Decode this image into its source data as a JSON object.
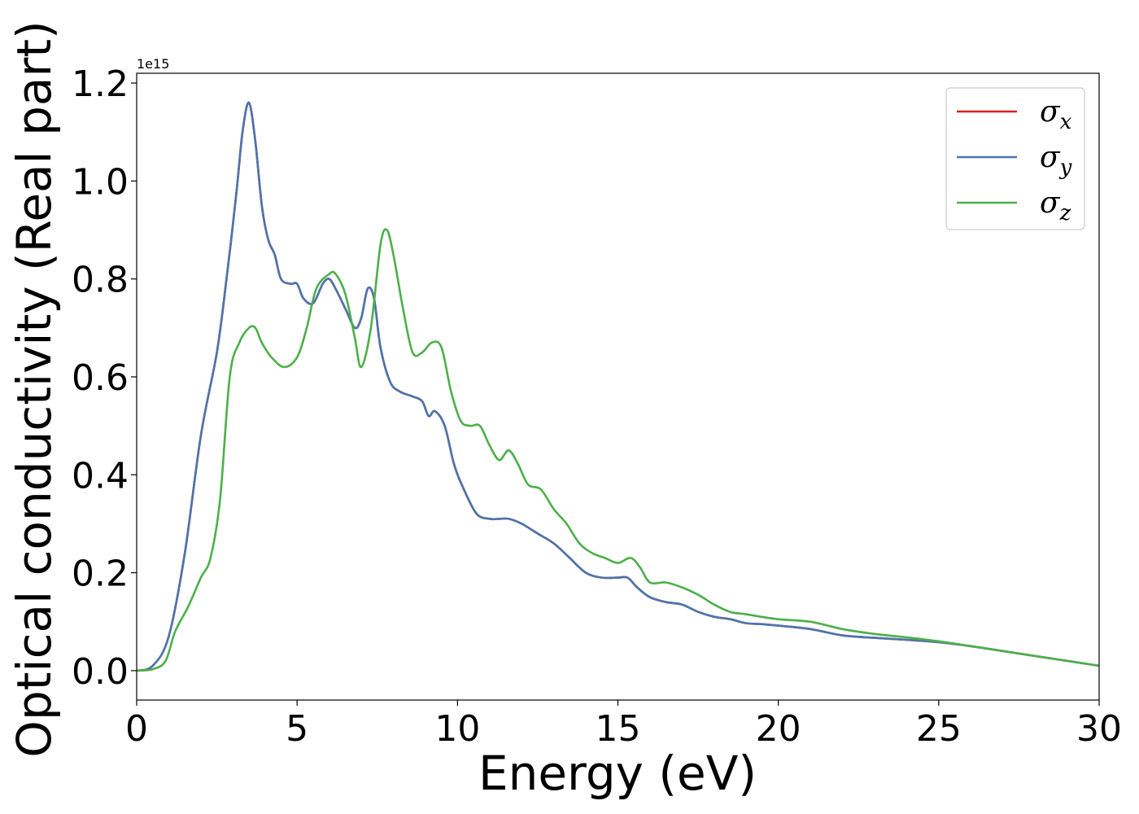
{
  "chart_data": {
    "type": "line",
    "title": "",
    "xlabel": "Energy (eV)",
    "ylabel": "Optical conductivity (Real part)",
    "y_offset_text": "1e15",
    "xlim": [
      0,
      30
    ],
    "ylim": [
      -0.06,
      1.22
    ],
    "xticks": [
      "0",
      "5",
      "10",
      "15",
      "20",
      "25",
      "30"
    ],
    "yticks": [
      "0.0",
      "0.2",
      "0.4",
      "0.6",
      "0.8",
      "1.0",
      "1.2"
    ],
    "grid": false,
    "legend_position": "top-right",
    "series": [
      {
        "name": "σx",
        "legend_base": "σ",
        "legend_sub": "x",
        "color": "#e41a1c",
        "x": [
          0,
          0.5,
          1.0,
          1.5,
          2.0,
          2.5,
          2.8,
          3.1,
          3.3,
          3.5,
          3.7,
          3.9,
          4.1,
          4.3,
          4.5,
          4.8,
          5.0,
          5.2,
          5.5,
          5.8,
          6.0,
          6.2,
          6.5,
          6.8,
          7.0,
          7.2,
          7.4,
          7.6,
          7.9,
          8.2,
          8.6,
          8.9,
          9.1,
          9.3,
          9.6,
          9.9,
          10.2,
          10.6,
          11.0,
          11.3,
          11.6,
          12.0,
          12.5,
          13.0,
          13.5,
          14.0,
          14.5,
          15.0,
          15.3,
          15.6,
          16.0,
          16.5,
          17.0,
          17.5,
          18.0,
          18.5,
          19.0,
          19.5,
          20.0,
          21.0,
          22.0,
          23.0,
          24.0,
          25.0,
          26.0,
          27.0,
          28.0,
          29.0,
          30.0
        ],
        "values": [
          0.0,
          0.01,
          0.07,
          0.24,
          0.48,
          0.65,
          0.8,
          0.97,
          1.1,
          1.16,
          1.08,
          0.95,
          0.88,
          0.85,
          0.8,
          0.79,
          0.79,
          0.76,
          0.75,
          0.79,
          0.8,
          0.78,
          0.74,
          0.7,
          0.72,
          0.78,
          0.76,
          0.66,
          0.59,
          0.57,
          0.56,
          0.55,
          0.52,
          0.53,
          0.5,
          0.42,
          0.37,
          0.32,
          0.31,
          0.31,
          0.31,
          0.3,
          0.28,
          0.26,
          0.23,
          0.2,
          0.19,
          0.19,
          0.19,
          0.17,
          0.15,
          0.14,
          0.135,
          0.12,
          0.11,
          0.105,
          0.097,
          0.095,
          0.092,
          0.085,
          0.072,
          0.067,
          0.063,
          0.058,
          0.05,
          0.04,
          0.03,
          0.02,
          0.01
        ]
      },
      {
        "name": "σy",
        "legend_base": "σ",
        "legend_sub": "y",
        "color": "#4a76ad",
        "x": [
          0,
          0.5,
          1.0,
          1.5,
          2.0,
          2.5,
          2.8,
          3.1,
          3.3,
          3.5,
          3.7,
          3.9,
          4.1,
          4.3,
          4.5,
          4.8,
          5.0,
          5.2,
          5.5,
          5.8,
          6.0,
          6.2,
          6.5,
          6.8,
          7.0,
          7.2,
          7.4,
          7.6,
          7.9,
          8.2,
          8.6,
          8.9,
          9.1,
          9.3,
          9.6,
          9.9,
          10.2,
          10.6,
          11.0,
          11.3,
          11.6,
          12.0,
          12.5,
          13.0,
          13.5,
          14.0,
          14.5,
          15.0,
          15.3,
          15.6,
          16.0,
          16.5,
          17.0,
          17.5,
          18.0,
          18.5,
          19.0,
          19.5,
          20.0,
          21.0,
          22.0,
          23.0,
          24.0,
          25.0,
          26.0,
          27.0,
          28.0,
          29.0,
          30.0
        ],
        "values": [
          0.0,
          0.01,
          0.07,
          0.24,
          0.48,
          0.65,
          0.8,
          0.97,
          1.1,
          1.16,
          1.08,
          0.95,
          0.88,
          0.85,
          0.8,
          0.79,
          0.79,
          0.76,
          0.75,
          0.79,
          0.8,
          0.78,
          0.74,
          0.7,
          0.72,
          0.78,
          0.76,
          0.66,
          0.59,
          0.57,
          0.56,
          0.55,
          0.52,
          0.53,
          0.5,
          0.42,
          0.37,
          0.32,
          0.31,
          0.31,
          0.31,
          0.3,
          0.28,
          0.26,
          0.23,
          0.2,
          0.19,
          0.19,
          0.19,
          0.17,
          0.15,
          0.14,
          0.135,
          0.12,
          0.11,
          0.105,
          0.097,
          0.095,
          0.092,
          0.085,
          0.072,
          0.067,
          0.063,
          0.058,
          0.05,
          0.04,
          0.03,
          0.02,
          0.01
        ]
      },
      {
        "name": "σz",
        "legend_base": "σ",
        "legend_sub": "z",
        "color": "#4daf4a",
        "x": [
          0,
          0.5,
          0.9,
          1.2,
          1.6,
          2.0,
          2.3,
          2.6,
          2.9,
          3.2,
          3.5,
          3.7,
          3.9,
          4.2,
          4.6,
          5.0,
          5.3,
          5.6,
          6.0,
          6.2,
          6.5,
          6.8,
          7.0,
          7.3,
          7.6,
          7.8,
          8.0,
          8.3,
          8.6,
          8.9,
          9.2,
          9.5,
          9.8,
          10.1,
          10.4,
          10.7,
          11.0,
          11.3,
          11.6,
          11.9,
          12.2,
          12.6,
          13.0,
          13.4,
          13.8,
          14.2,
          14.6,
          15.0,
          15.4,
          15.7,
          16.0,
          16.5,
          17.0,
          17.5,
          18.0,
          18.5,
          19.0,
          20.0,
          21.0,
          22.0,
          23.0,
          24.0,
          25.0,
          26.0,
          27.0,
          28.0,
          29.0,
          30.0
        ],
        "values": [
          0.0,
          0.003,
          0.02,
          0.08,
          0.13,
          0.19,
          0.23,
          0.35,
          0.6,
          0.67,
          0.7,
          0.7,
          0.67,
          0.64,
          0.62,
          0.64,
          0.7,
          0.78,
          0.81,
          0.81,
          0.77,
          0.68,
          0.62,
          0.7,
          0.87,
          0.9,
          0.85,
          0.74,
          0.65,
          0.65,
          0.67,
          0.66,
          0.57,
          0.51,
          0.5,
          0.5,
          0.46,
          0.43,
          0.45,
          0.42,
          0.38,
          0.37,
          0.33,
          0.3,
          0.26,
          0.24,
          0.23,
          0.22,
          0.23,
          0.21,
          0.18,
          0.18,
          0.17,
          0.155,
          0.135,
          0.12,
          0.115,
          0.105,
          0.1,
          0.085,
          0.075,
          0.068,
          0.06,
          0.05,
          0.04,
          0.03,
          0.02,
          0.01
        ]
      }
    ]
  }
}
